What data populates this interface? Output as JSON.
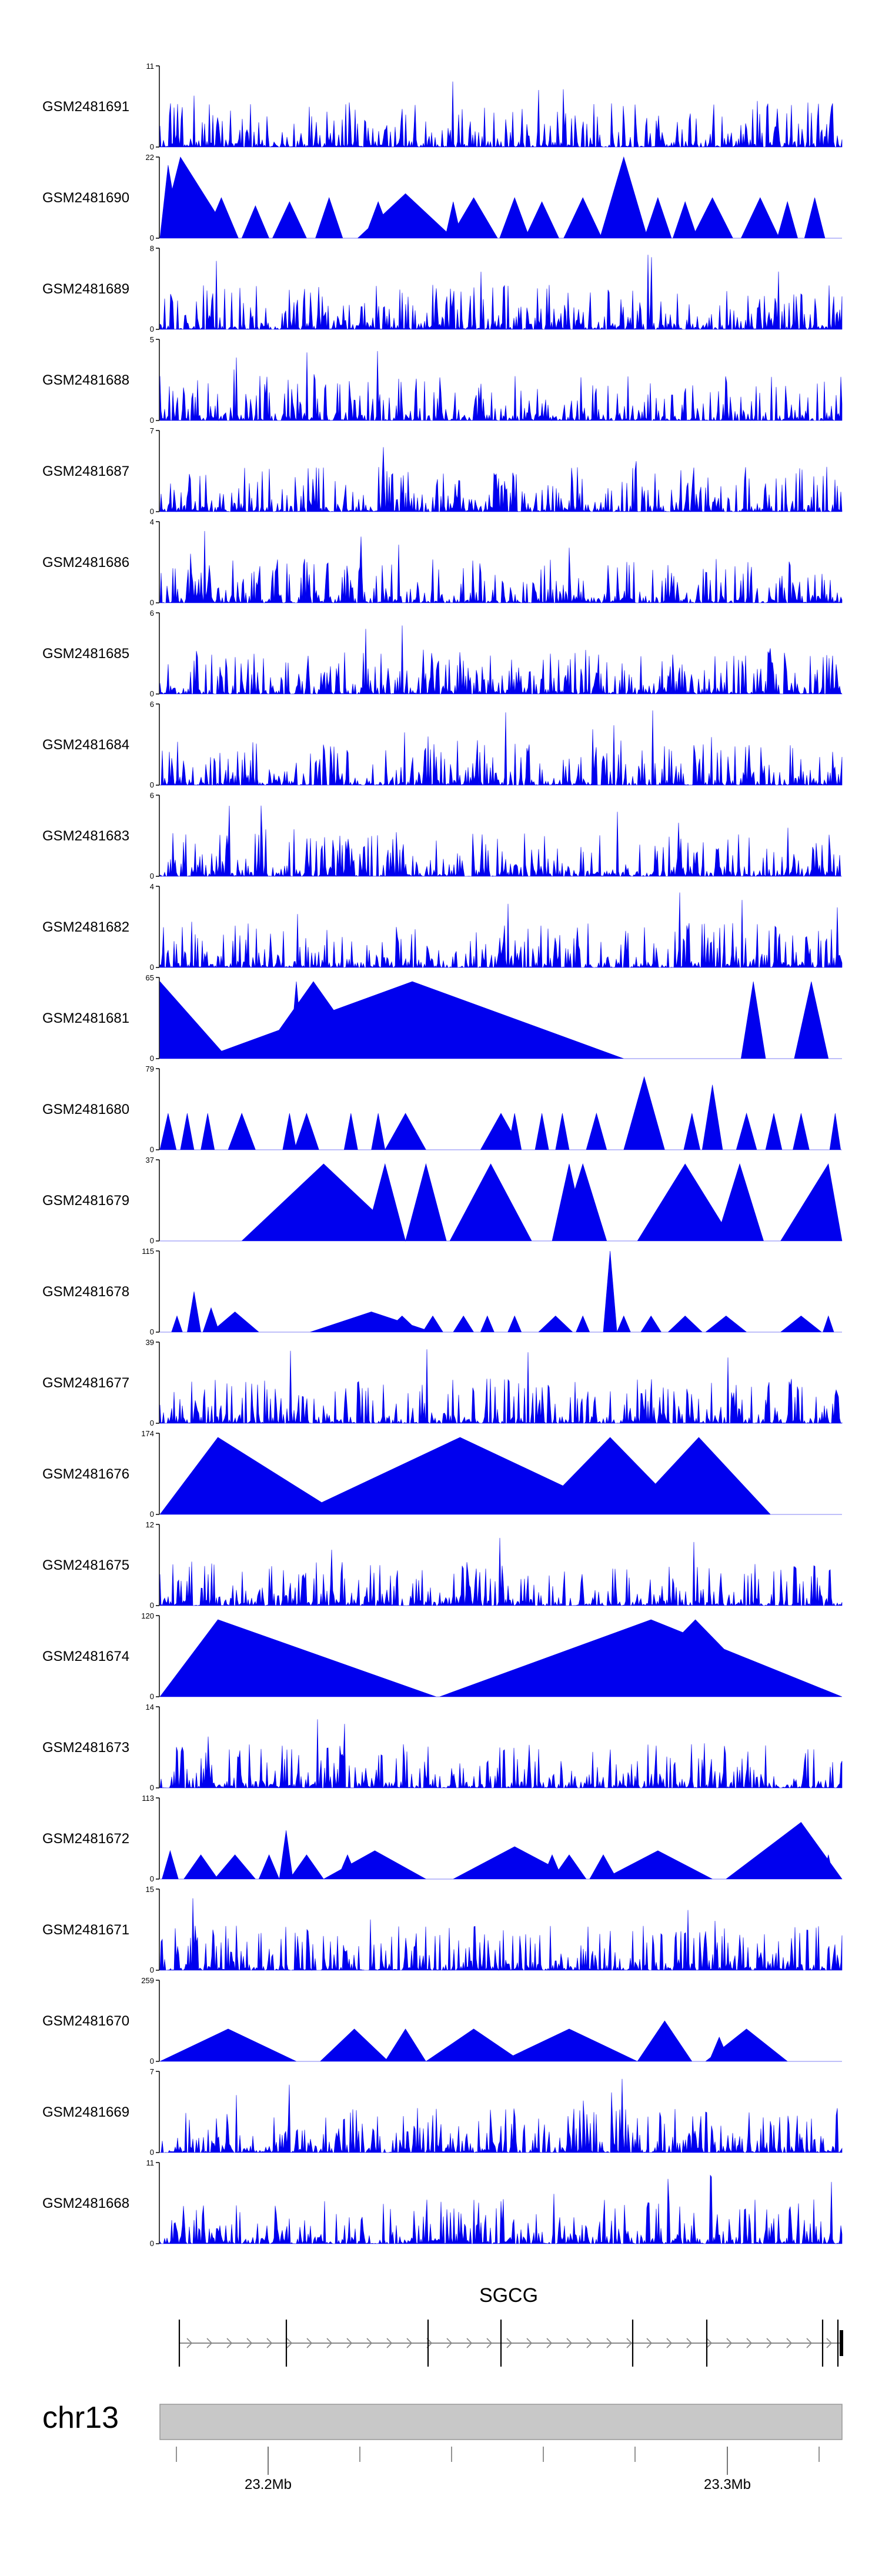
{
  "chart_data": {
    "type": "area",
    "title": "",
    "chromosome": "chr13",
    "gene": "SGCG",
    "x_ticks": [
      "23.2Mb",
      "23.3Mb"
    ],
    "tracks": [
      {
        "name": "GSM2481691",
        "ymax": 11,
        "ymin": 0,
        "color": "#0000ee",
        "style": "noise"
      },
      {
        "name": "GSM2481690",
        "ymax": 22,
        "ymin": 0,
        "color": "#0000ee",
        "style": "tri",
        "peaks": [
          [
            0.012,
            0.9,
            0.018
          ],
          [
            0.03,
            1.0,
            0.075
          ],
          [
            0.09,
            0.5,
            0.025
          ],
          [
            0.14,
            0.4,
            0.02
          ],
          [
            0.19,
            0.45,
            0.025
          ],
          [
            0.248,
            0.5,
            0.02
          ],
          [
            0.32,
            0.45,
            0.02
          ],
          [
            0.36,
            0.55,
            0.07
          ],
          [
            0.43,
            0.45,
            0.012
          ],
          [
            0.46,
            0.5,
            0.035
          ],
          [
            0.52,
            0.5,
            0.022
          ],
          [
            0.56,
            0.45,
            0.025
          ],
          [
            0.62,
            0.5,
            0.028
          ],
          [
            0.68,
            1.0,
            0.035
          ],
          [
            0.73,
            0.5,
            0.02
          ],
          [
            0.77,
            0.45,
            0.018
          ],
          [
            0.81,
            0.5,
            0.03
          ],
          [
            0.88,
            0.5,
            0.028
          ],
          [
            0.92,
            0.45,
            0.015
          ],
          [
            0.96,
            0.5,
            0.015
          ]
        ]
      },
      {
        "name": "GSM2481689",
        "ymax": 8,
        "ymin": 0,
        "color": "#0000ee",
        "style": "noise"
      },
      {
        "name": "GSM2481688",
        "ymax": 5,
        "ymin": 0,
        "color": "#0000ee",
        "style": "noise"
      },
      {
        "name": "GSM2481687",
        "ymax": 7,
        "ymin": 0,
        "color": "#0000ee",
        "style": "noise"
      },
      {
        "name": "GSM2481686",
        "ymax": 4,
        "ymin": 0,
        "color": "#0000ee",
        "style": "noise"
      },
      {
        "name": "GSM2481685",
        "ymax": 6,
        "ymin": 0,
        "color": "#0000ee",
        "style": "noise"
      },
      {
        "name": "GSM2481684",
        "ymax": 6,
        "ymin": 0,
        "color": "#0000ee",
        "style": "noise"
      },
      {
        "name": "GSM2481683",
        "ymax": 6,
        "ymin": 0,
        "color": "#0000ee",
        "style": "noise"
      },
      {
        "name": "GSM2481682",
        "ymax": 4,
        "ymin": 0,
        "color": "#0000ee",
        "style": "noise"
      },
      {
        "name": "GSM2481681",
        "ymax": 65,
        "ymin": 0,
        "color": "#0000ee",
        "style": "tri",
        "peaks": [
          [
            0.0,
            0.95,
            0.1
          ],
          [
            0.2,
            0.95,
            0.01
          ],
          [
            0.225,
            0.95,
            0.08
          ],
          [
            0.37,
            0.95,
            0.31
          ],
          [
            0.87,
            0.95,
            0.018
          ],
          [
            0.955,
            0.95,
            0.025
          ]
        ]
      },
      {
        "name": "GSM2481680",
        "ymax": 79,
        "ymin": 0,
        "color": "#0000ee",
        "style": "tri",
        "peaks": [
          [
            0.012,
            0.45,
            0.012
          ],
          [
            0.04,
            0.45,
            0.01
          ],
          [
            0.07,
            0.45,
            0.01
          ],
          [
            0.12,
            0.45,
            0.02
          ],
          [
            0.19,
            0.45,
            0.01
          ],
          [
            0.215,
            0.45,
            0.018
          ],
          [
            0.28,
            0.45,
            0.01
          ],
          [
            0.32,
            0.45,
            0.01
          ],
          [
            0.36,
            0.45,
            0.03
          ],
          [
            0.5,
            0.45,
            0.03
          ],
          [
            0.52,
            0.45,
            0.01
          ],
          [
            0.56,
            0.45,
            0.01
          ],
          [
            0.59,
            0.45,
            0.01
          ],
          [
            0.64,
            0.45,
            0.015
          ],
          [
            0.71,
            0.9,
            0.03
          ],
          [
            0.78,
            0.45,
            0.012
          ],
          [
            0.81,
            0.8,
            0.015
          ],
          [
            0.86,
            0.45,
            0.015
          ],
          [
            0.9,
            0.45,
            0.012
          ],
          [
            0.94,
            0.45,
            0.012
          ],
          [
            0.99,
            0.45,
            0.008
          ]
        ]
      },
      {
        "name": "GSM2481679",
        "ymax": 37,
        "ymin": 0,
        "color": "#0000ee",
        "style": "tri",
        "peaks": [
          [
            0.24,
            0.95,
            0.12
          ],
          [
            0.33,
            0.95,
            0.03
          ],
          [
            0.39,
            0.95,
            0.03
          ],
          [
            0.485,
            0.95,
            0.06
          ],
          [
            0.6,
            0.95,
            0.025
          ],
          [
            0.62,
            0.95,
            0.035
          ],
          [
            0.77,
            0.95,
            0.07
          ],
          [
            0.85,
            0.95,
            0.035
          ],
          [
            0.98,
            0.95,
            0.07
          ]
        ]
      },
      {
        "name": "GSM2481678",
        "ymax": 115,
        "ymin": 0,
        "color": "#0000ee",
        "style": "tri",
        "peaks": [
          [
            0.025,
            0.2,
            0.008
          ],
          [
            0.05,
            0.5,
            0.01
          ],
          [
            0.075,
            0.3,
            0.012
          ],
          [
            0.11,
            0.25,
            0.035
          ],
          [
            0.31,
            0.25,
            0.09
          ],
          [
            0.355,
            0.2,
            0.025
          ],
          [
            0.4,
            0.2,
            0.015
          ],
          [
            0.445,
            0.2,
            0.015
          ],
          [
            0.48,
            0.2,
            0.01
          ],
          [
            0.52,
            0.2,
            0.01
          ],
          [
            0.58,
            0.2,
            0.025
          ],
          [
            0.62,
            0.2,
            0.01
          ],
          [
            0.66,
            1.0,
            0.01
          ],
          [
            0.68,
            0.2,
            0.01
          ],
          [
            0.72,
            0.2,
            0.015
          ],
          [
            0.77,
            0.2,
            0.025
          ],
          [
            0.83,
            0.2,
            0.03
          ],
          [
            0.94,
            0.2,
            0.03
          ],
          [
            0.98,
            0.2,
            0.008
          ]
        ]
      },
      {
        "name": "GSM2481677",
        "ymax": 39,
        "ymin": 0,
        "color": "#0000ee",
        "style": "noise"
      },
      {
        "name": "GSM2481676",
        "ymax": 174,
        "ymin": 0,
        "color": "#0000ee",
        "style": "tri",
        "peaks": [
          [
            0.085,
            0.95,
            0.18
          ],
          [
            0.44,
            0.95,
            0.24
          ],
          [
            0.66,
            0.95,
            0.11
          ],
          [
            0.79,
            0.95,
            0.105
          ]
        ]
      },
      {
        "name": "GSM2481675",
        "ymax": 12,
        "ymin": 0,
        "color": "#0000ee",
        "style": "noise"
      },
      {
        "name": "GSM2481674",
        "ymax": 120,
        "ymin": 0,
        "color": "#0000ee",
        "style": "tri",
        "peaks": [
          [
            0.085,
            0.95,
            0.32
          ],
          [
            0.72,
            0.95,
            0.31
          ],
          [
            0.785,
            0.95,
            0.11
          ]
        ]
      },
      {
        "name": "GSM2481673",
        "ymax": 14,
        "ymin": 0,
        "color": "#0000ee",
        "style": "noise"
      },
      {
        "name": "GSM2481672",
        "ymax": 113,
        "ymin": 0,
        "color": "#0000ee",
        "style": "tri",
        "peaks": [
          [
            0.015,
            0.35,
            0.012
          ],
          [
            0.06,
            0.3,
            0.025
          ],
          [
            0.11,
            0.3,
            0.03
          ],
          [
            0.16,
            0.3,
            0.015
          ],
          [
            0.185,
            0.6,
            0.01
          ],
          [
            0.215,
            0.3,
            0.025
          ],
          [
            0.275,
            0.3,
            0.015
          ],
          [
            0.315,
            0.35,
            0.075
          ],
          [
            0.52,
            0.4,
            0.09
          ],
          [
            0.575,
            0.3,
            0.015
          ],
          [
            0.6,
            0.3,
            0.025
          ],
          [
            0.65,
            0.3,
            0.02
          ],
          [
            0.73,
            0.35,
            0.08
          ],
          [
            0.94,
            0.7,
            0.11
          ],
          [
            0.98,
            0.3,
            0.008
          ]
        ]
      },
      {
        "name": "GSM2481671",
        "ymax": 15,
        "ymin": 0,
        "color": "#0000ee",
        "style": "noise"
      },
      {
        "name": "GSM2481670",
        "ymax": 259,
        "ymin": 0,
        "color": "#0000ee",
        "style": "tri",
        "peaks": [
          [
            0.1,
            0.4,
            0.1
          ],
          [
            0.285,
            0.4,
            0.05
          ],
          [
            0.36,
            0.4,
            0.03
          ],
          [
            0.46,
            0.4,
            0.07
          ],
          [
            0.6,
            0.4,
            0.1
          ],
          [
            0.74,
            0.5,
            0.04
          ],
          [
            0.82,
            0.3,
            0.015
          ],
          [
            0.86,
            0.4,
            0.06
          ]
        ]
      },
      {
        "name": "GSM2481669",
        "ymax": 7,
        "ymin": 0,
        "color": "#0000ee",
        "style": "noise"
      },
      {
        "name": "GSM2481668",
        "ymax": 11,
        "ymin": 0,
        "color": "#0000ee",
        "style": "noise"
      }
    ]
  }
}
